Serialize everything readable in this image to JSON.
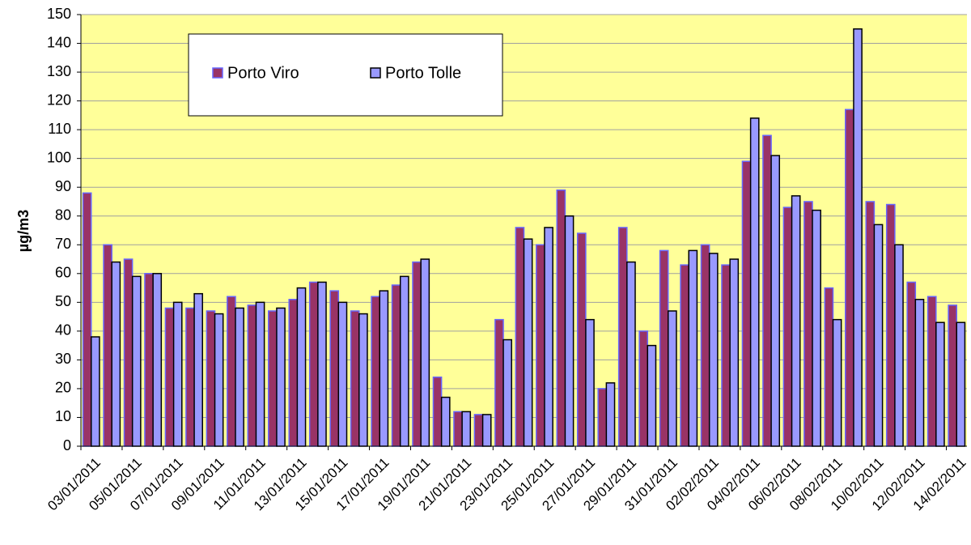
{
  "chart_data": {
    "type": "bar",
    "y_label": "µg/m3",
    "categories": [
      "03/01/2011",
      null,
      "05/01/2011",
      null,
      "07/01/2011",
      null,
      "09/01/2011",
      null,
      "11/01/2011",
      null,
      "13/01/2011",
      null,
      "15/01/2011",
      null,
      "17/01/2011",
      null,
      "19/01/2011",
      null,
      "21/01/2011",
      null,
      "23/01/2011",
      null,
      "25/01/2011",
      null,
      "27/01/2011",
      null,
      "29/01/2011",
      null,
      "31/01/2011",
      null,
      "02/02/2011",
      null,
      "04/02/2011",
      null,
      "06/02/2011",
      null,
      "08/02/2011",
      null,
      "10/02/2011",
      null,
      "12/02/2011",
      null,
      "14/02/2011"
    ],
    "series": [
      {
        "name": "Porto Viro",
        "color": "#993366",
        "stroke": "#6666ff",
        "values": [
          88,
          70,
          65,
          60,
          48,
          48,
          47,
          52,
          49,
          47,
          51,
          57,
          54,
          47,
          52,
          56,
          64,
          24,
          12,
          11,
          44,
          76,
          70,
          89,
          74,
          20,
          76,
          40,
          68,
          63,
          70,
          63,
          99,
          108,
          83,
          85,
          55,
          117,
          85,
          84,
          57,
          52,
          49
        ]
      },
      {
        "name": "Porto Tolle",
        "color": "#9999ff",
        "stroke": "#000000",
        "values": [
          38,
          64,
          59,
          60,
          50,
          53,
          46,
          48,
          50,
          48,
          55,
          57,
          50,
          46,
          54,
          59,
          65,
          17,
          12,
          11,
          37,
          72,
          76,
          80,
          44,
          22,
          64,
          35,
          47,
          68,
          67,
          65,
          114,
          101,
          87,
          82,
          44,
          145,
          77,
          70,
          51,
          43,
          43
        ]
      }
    ],
    "ylim": [
      0,
      150
    ],
    "yticks": [
      0,
      10,
      20,
      30,
      40,
      50,
      60,
      70,
      80,
      90,
      100,
      110,
      120,
      130,
      140,
      150
    ],
    "grid": true,
    "background": "#ffff99"
  }
}
